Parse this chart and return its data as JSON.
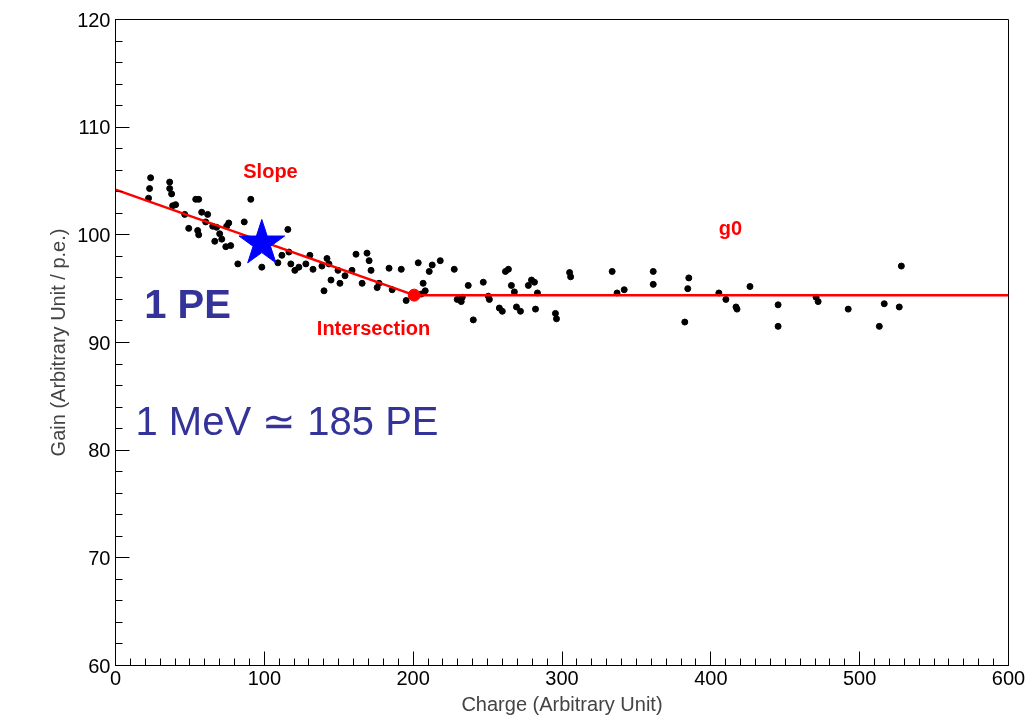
{
  "chart_data": {
    "type": "scatter",
    "xlabel": "Charge (Arbitrary Unit)",
    "ylabel": "Gain (Arbitrary Unit / p.e.)",
    "xlim": [
      0,
      600
    ],
    "xticks": [
      0,
      100,
      200,
      300,
      400,
      500,
      600
    ],
    "ylim": [
      60,
      120
    ],
    "yticks": [
      60,
      70,
      80,
      90,
      100,
      110,
      120
    ],
    "grid": false,
    "series": [
      {
        "marker": "circle",
        "color": "#000000",
        "x": [
          23.6,
          22.9,
          22.2,
          36.4,
          36.4,
          37.7,
          38.4,
          40.4,
          46.5,
          53.9,
          55.9,
          57.9,
          61.9,
          60.6,
          49.2,
          55.2,
          55.9,
          65.3,
          67.9,
          70.0,
          66.7,
          71.4,
          74.7,
          76.1,
          74.1,
          77.4,
          90.9,
          86.5,
          82.2,
          98.3,
          109.1,
          111.8,
          115.8,
          116.5,
          117.8,
          120.5,
          123.2,
          127.9,
          130.6,
          132.7,
          138.7,
          142.1,
          143.4,
          140.1,
          144.8,
          149.5,
          150.8,
          154.2,
          158.9,
          161.6,
          165.7,
          169.0,
          170.4,
          171.7,
          175.8,
          177.1,
          183.8,
          185.9,
          192.0,
          195.3,
          203.4,
          205.4,
          206.7,
          208.1,
          210.8,
          212.8,
          218.2,
          227.6,
          229.6,
          232.3,
          233.0,
          237.0,
          240.4,
          247.1,
          250.5,
          251.2,
          257.9,
          259.9,
          262.0,
          264.0,
          266.0,
          268.0,
          269.4,
          272.1,
          277.4,
          279.5,
          281.5,
          283.5,
          282.2,
          295.6,
          296.3,
          305.1,
          305.8,
          333.7,
          337.0,
          341.8,
          361.3,
          361.3,
          382.5,
          384.5,
          385.2,
          405.4,
          410.1,
          416.9,
          417.6,
          426.3,
          445.2,
          445.2,
          470.7,
          472.1,
          492.3,
          513.2,
          516.5,
          526.6,
          528.0
        ],
        "values": [
          105.3,
          104.3,
          103.4,
          104.9,
          104.3,
          103.8,
          102.7,
          102.8,
          101.9,
          103.3,
          103.3,
          102.1,
          101.9,
          101.2,
          100.6,
          100.4,
          100.0,
          100.8,
          100.7,
          100.1,
          99.4,
          99.6,
          100.8,
          101.1,
          98.9,
          99.0,
          103.3,
          101.2,
          97.3,
          97.0,
          97.4,
          98.1,
          100.5,
          98.4,
          97.3,
          96.7,
          97.0,
          97.3,
          98.1,
          96.8,
          97.1,
          97.8,
          97.3,
          94.8,
          95.8,
          96.7,
          95.5,
          96.2,
          96.7,
          98.2,
          95.5,
          98.3,
          97.6,
          96.7,
          95.1,
          95.5,
          96.9,
          94.9,
          96.8,
          93.9,
          97.4,
          94.5,
          95.5,
          94.8,
          96.6,
          97.2,
          97.6,
          96.8,
          94.0,
          93.8,
          94.2,
          95.3,
          92.1,
          95.6,
          94.3,
          94.0,
          93.2,
          92.9,
          96.6,
          96.8,
          95.3,
          94.7,
          93.3,
          92.9,
          95.3,
          95.8,
          95.6,
          94.6,
          93.1,
          92.7,
          92.2,
          96.5,
          96.1,
          96.6,
          94.6,
          94.9,
          96.6,
          95.4,
          91.9,
          95.0,
          96.0,
          94.6,
          94.0,
          93.3,
          93.1,
          95.2,
          93.5,
          91.5,
          94.2,
          93.8,
          93.1,
          91.5,
          93.6,
          93.3,
          97.1
        ]
      },
      {
        "type": "line",
        "line_style": "solid",
        "color": "#ff0000",
        "x": [
          0,
          200.7,
          600
        ],
        "values": [
          104.2,
          94.4,
          94.4
        ]
      },
      {
        "type": "scatter",
        "marker": "circle",
        "color": "#ff0000",
        "x": [
          200.7
        ],
        "values": [
          94.4
        ]
      },
      {
        "type": "scatter",
        "marker": "star",
        "color": "#0000ff",
        "x": [
          98.3
        ],
        "values": [
          99.2
        ]
      }
    ],
    "annotations": [
      "Slope",
      "g0",
      "Intersection",
      "1 PE",
      "1 MeV ≃ 185 PE"
    ]
  }
}
